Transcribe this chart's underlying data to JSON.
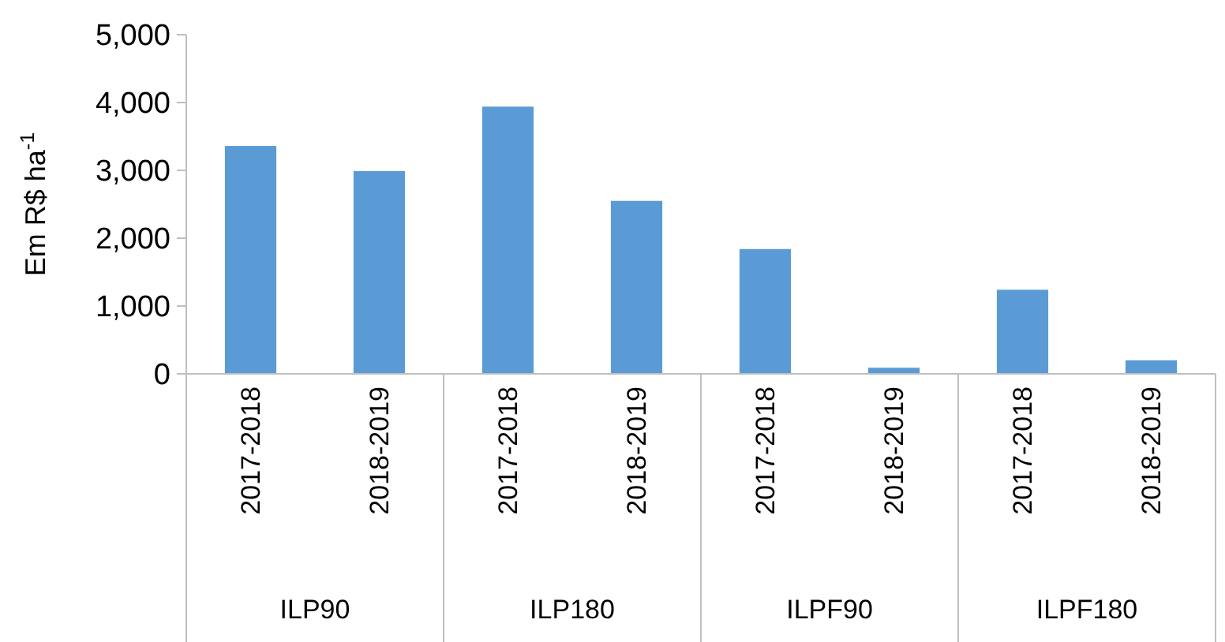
{
  "chart_data": {
    "type": "bar",
    "ylabel": "Em R$ ha$^{-1}$",
    "categories": [
      "2017-2018",
      "2018-2019",
      "2017-2018",
      "2018-2019",
      "2017-2018",
      "2018-2019",
      "2017-2018",
      "2018-2019"
    ],
    "annotations": [
      "ILP90",
      "ILP180",
      "ILPF90",
      "ILPF180"
    ],
    "values": [
      3360,
      2990,
      3940,
      2550,
      1840,
      90,
      1240,
      200
    ],
    "color": "#5b9bd5",
    "ylim": [
      0,
      5000
    ],
    "yticks": [
      {
        "value": 0,
        "label": "0"
      },
      {
        "value": 1000,
        "label": "1,000"
      },
      {
        "value": 2000,
        "label": "2,000"
      },
      {
        "value": 3000,
        "label": "3,000"
      },
      {
        "value": 4000,
        "label": "4,000"
      },
      {
        "value": 5000,
        "label": "5,000"
      }
    ],
    "grid": false
  }
}
